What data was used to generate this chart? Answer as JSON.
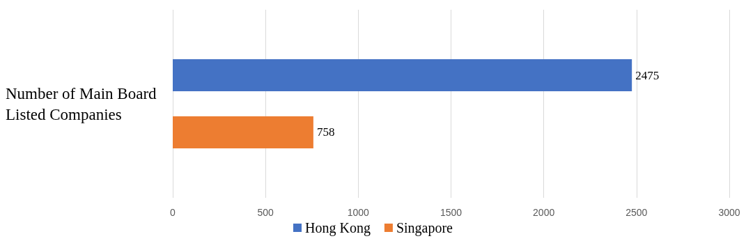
{
  "chart_data": {
    "type": "bar",
    "orientation": "horizontal",
    "categories": [
      "Number of Main Board Listed Companies"
    ],
    "series": [
      {
        "name": "Hong Kong",
        "color": "#4472c4",
        "values": [
          2475
        ]
      },
      {
        "name": "Singapore",
        "color": "#ed7d31",
        "values": [
          758
        ]
      }
    ],
    "xlim": [
      0,
      3000
    ],
    "xticks": [
      0,
      500,
      1000,
      1500,
      2000,
      2500,
      3000
    ],
    "grid": "x",
    "legend": "bottom",
    "data_labels": true
  }
}
